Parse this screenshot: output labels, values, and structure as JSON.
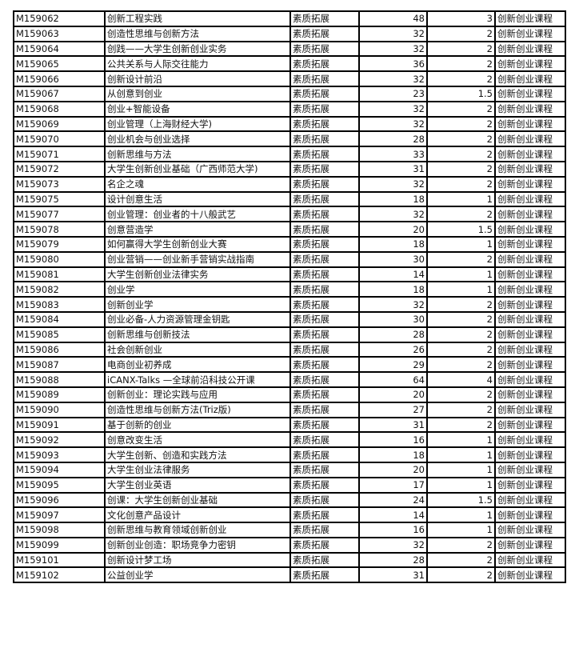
{
  "table": {
    "rows": [
      [
        "M159062",
        "创新工程实践",
        "素质拓展",
        "48",
        "3",
        "创新创业课程"
      ],
      [
        "M159063",
        "创造性思维与创新方法",
        "素质拓展",
        "32",
        "2",
        "创新创业课程"
      ],
      [
        "M159064",
        "创践——大学生创新创业实务",
        "素质拓展",
        "32",
        "2",
        "创新创业课程"
      ],
      [
        "M159065",
        "公共关系与人际交往能力",
        "素质拓展",
        "36",
        "2",
        "创新创业课程"
      ],
      [
        "M159066",
        "创新设计前沿",
        "素质拓展",
        "32",
        "2",
        "创新创业课程"
      ],
      [
        "M159067",
        "从创意到创业",
        "素质拓展",
        "23",
        "1.5",
        "创新创业课程"
      ],
      [
        "M159068",
        "创业+智能设备",
        "素质拓展",
        "32",
        "2",
        "创新创业课程"
      ],
      [
        "M159069",
        "创业管理（上海财经大学)",
        "素质拓展",
        "32",
        "2",
        "创新创业课程"
      ],
      [
        "M159070",
        "创业机会与创业选择",
        "素质拓展",
        "28",
        "2",
        "创新创业课程"
      ],
      [
        "M159071",
        "创新思维与方法",
        "素质拓展",
        "33",
        "2",
        "创新创业课程"
      ],
      [
        "M159072",
        "大学生创新创业基础（广西师范大学)",
        "素质拓展",
        "31",
        "2",
        "创新创业课程"
      ],
      [
        "M159073",
        "名企之魂",
        "素质拓展",
        "32",
        "2",
        "创新创业课程"
      ],
      [
        "M159075",
        "设计创意生活",
        "素质拓展",
        "18",
        "1",
        "创新创业课程"
      ],
      [
        "M159077",
        "创业管理：创业者的十八般武艺",
        "素质拓展",
        "32",
        "2",
        "创新创业课程"
      ],
      [
        "M159078",
        "创意营造学",
        "素质拓展",
        "20",
        "1.5",
        "创新创业课程"
      ],
      [
        "M159079",
        "如何赢得大学生创新创业大赛",
        "素质拓展",
        "18",
        "1",
        "创新创业课程"
      ],
      [
        "M159080",
        "创业营销——创业新手营销实战指南",
        "素质拓展",
        "30",
        "2",
        "创新创业课程"
      ],
      [
        "M159081",
        "大学生创新创业法律实务",
        "素质拓展",
        "14",
        "1",
        "创新创业课程"
      ],
      [
        "M159082",
        "创业学",
        "素质拓展",
        "18",
        "1",
        "创新创业课程"
      ],
      [
        "M159083",
        "创新创业学",
        "素质拓展",
        "32",
        "2",
        "创新创业课程"
      ],
      [
        "M159084",
        "创业必备-人力资源管理金钥匙",
        "素质拓展",
        "30",
        "2",
        "创新创业课程"
      ],
      [
        "M159085",
        "创新思维与创新技法",
        "素质拓展",
        "28",
        "2",
        "创新创业课程"
      ],
      [
        "M159086",
        "社会创新创业",
        "素质拓展",
        "26",
        "2",
        "创新创业课程"
      ],
      [
        "M159087",
        "电商创业初养成",
        "素质拓展",
        "29",
        "2",
        "创新创业课程"
      ],
      [
        "M159088",
        "iCANX-Talks —全球前沿科技公开课",
        "素质拓展",
        "64",
        "4",
        "创新创业课程"
      ],
      [
        "M159089",
        "创新创业：理论实践与应用",
        "素质拓展",
        "20",
        "2",
        "创新创业课程"
      ],
      [
        "M159090",
        "创造性思维与创新方法(Triz版)",
        "素质拓展",
        "27",
        "2",
        "创新创业课程"
      ],
      [
        "M159091",
        "基于创新的创业",
        "素质拓展",
        "31",
        "2",
        "创新创业课程"
      ],
      [
        "M159092",
        "创意改变生活",
        "素质拓展",
        "16",
        "1",
        "创新创业课程"
      ],
      [
        "M159093",
        "大学生创新、创造和实践方法",
        "素质拓展",
        "18",
        "1",
        "创新创业课程"
      ],
      [
        "M159094",
        "大学生创业法律服务",
        "素质拓展",
        "20",
        "1",
        "创新创业课程"
      ],
      [
        "M159095",
        "大学生创业英语",
        "素质拓展",
        "17",
        "1",
        "创新创业课程"
      ],
      [
        "M159096",
        "创课：大学生创新创业基础",
        "素质拓展",
        "24",
        "1.5",
        "创新创业课程"
      ],
      [
        "M159097",
        "文化创意产品设计",
        "素质拓展",
        "14",
        "1",
        "创新创业课程"
      ],
      [
        "M159098",
        "创新思维与教育领域创新创业",
        "素质拓展",
        "16",
        "1",
        "创新创业课程"
      ],
      [
        "M159099",
        "创新创业创造：职场竞争力密钥",
        "素质拓展",
        "32",
        "2",
        "创新创业课程"
      ],
      [
        "M159101",
        "创新设计梦工场",
        "素质拓展",
        "28",
        "2",
        "创新创业课程"
      ],
      [
        "M159102",
        "公益创业学",
        "素质拓展",
        "31",
        "2",
        "创新创业课程"
      ]
    ]
  }
}
